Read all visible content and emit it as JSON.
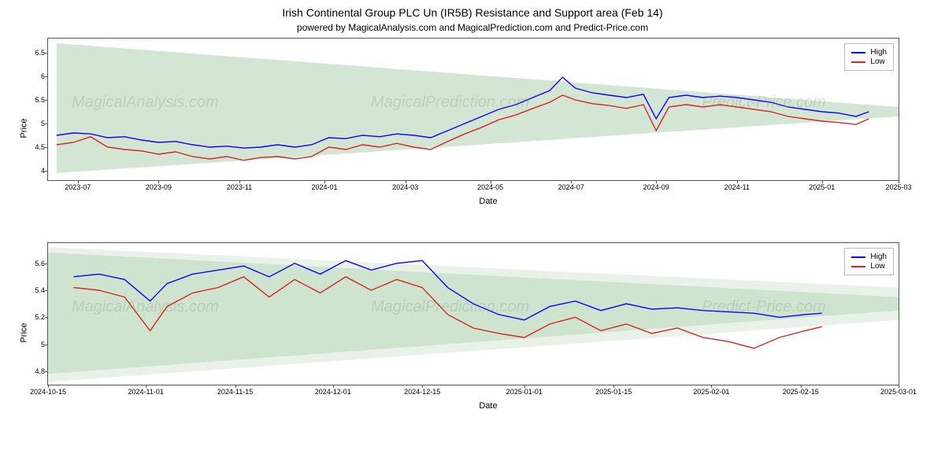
{
  "title": "Irish Continental Group PLC Un (IR5B) Resistance and Support area (Feb 14)",
  "subtitle": "powered by MagicalAnalysis.com and MagicalPrediction.com and Predict-Price.com",
  "watermarks": [
    "MagicalAnalysis.com",
    "MagicalPrediction.com",
    "Predict-Price.com"
  ],
  "legend": {
    "high": "High",
    "low": "Low"
  },
  "colors": {
    "high_line": "#1500ff",
    "low_line": "#d62728",
    "wedge_fill": "#c8e0c8",
    "wedge_fill_light": "#e0ece0",
    "axis": "#555555",
    "text": "#000000",
    "background": "#ffffff"
  },
  "chart_top": {
    "type": "line",
    "ylabel": "Price",
    "xlabel": "Date",
    "ylim": [
      3.8,
      6.8
    ],
    "yticks": [
      4.0,
      4.5,
      5.0,
      5.5,
      6.0,
      6.5
    ],
    "xticks": [
      "2023-07",
      "2023-09",
      "2023-11",
      "2024-01",
      "2024-03",
      "2024-05",
      "2024-07",
      "2024-09",
      "2024-11",
      "2025-01",
      "2025-03"
    ],
    "xtick_positions": [
      0.035,
      0.13,
      0.225,
      0.325,
      0.42,
      0.52,
      0.615,
      0.715,
      0.81,
      0.91,
      1.0
    ],
    "wedge_upper": [
      [
        0.01,
        6.7
      ],
      [
        1.0,
        5.35
      ]
    ],
    "wedge_lower": [
      [
        0.01,
        3.95
      ],
      [
        1.0,
        5.15
      ]
    ],
    "high_series": [
      [
        0.01,
        4.75
      ],
      [
        0.03,
        4.8
      ],
      [
        0.05,
        4.78
      ],
      [
        0.07,
        4.7
      ],
      [
        0.09,
        4.72
      ],
      [
        0.11,
        4.65
      ],
      [
        0.13,
        4.6
      ],
      [
        0.15,
        4.62
      ],
      [
        0.17,
        4.55
      ],
      [
        0.19,
        4.5
      ],
      [
        0.21,
        4.52
      ],
      [
        0.23,
        4.48
      ],
      [
        0.25,
        4.5
      ],
      [
        0.27,
        4.55
      ],
      [
        0.29,
        4.5
      ],
      [
        0.31,
        4.55
      ],
      [
        0.33,
        4.7
      ],
      [
        0.35,
        4.68
      ],
      [
        0.37,
        4.75
      ],
      [
        0.39,
        4.72
      ],
      [
        0.41,
        4.78
      ],
      [
        0.43,
        4.75
      ],
      [
        0.45,
        4.7
      ],
      [
        0.47,
        4.85
      ],
      [
        0.49,
        5.0
      ],
      [
        0.51,
        5.15
      ],
      [
        0.53,
        5.3
      ],
      [
        0.55,
        5.4
      ],
      [
        0.57,
        5.55
      ],
      [
        0.59,
        5.7
      ],
      [
        0.605,
        5.98
      ],
      [
        0.62,
        5.75
      ],
      [
        0.64,
        5.65
      ],
      [
        0.66,
        5.6
      ],
      [
        0.68,
        5.55
      ],
      [
        0.7,
        5.62
      ],
      [
        0.715,
        5.1
      ],
      [
        0.73,
        5.55
      ],
      [
        0.75,
        5.6
      ],
      [
        0.77,
        5.55
      ],
      [
        0.79,
        5.58
      ],
      [
        0.81,
        5.55
      ],
      [
        0.83,
        5.5
      ],
      [
        0.85,
        5.45
      ],
      [
        0.87,
        5.35
      ],
      [
        0.89,
        5.3
      ],
      [
        0.91,
        5.25
      ],
      [
        0.93,
        5.22
      ],
      [
        0.95,
        5.15
      ],
      [
        0.965,
        5.25
      ]
    ],
    "low_series": [
      [
        0.01,
        4.55
      ],
      [
        0.03,
        4.6
      ],
      [
        0.05,
        4.72
      ],
      [
        0.07,
        4.5
      ],
      [
        0.09,
        4.45
      ],
      [
        0.11,
        4.42
      ],
      [
        0.13,
        4.35
      ],
      [
        0.15,
        4.4
      ],
      [
        0.17,
        4.3
      ],
      [
        0.19,
        4.25
      ],
      [
        0.21,
        4.3
      ],
      [
        0.23,
        4.22
      ],
      [
        0.25,
        4.28
      ],
      [
        0.27,
        4.3
      ],
      [
        0.29,
        4.25
      ],
      [
        0.31,
        4.3
      ],
      [
        0.33,
        4.5
      ],
      [
        0.35,
        4.45
      ],
      [
        0.37,
        4.55
      ],
      [
        0.39,
        4.5
      ],
      [
        0.41,
        4.58
      ],
      [
        0.43,
        4.5
      ],
      [
        0.45,
        4.45
      ],
      [
        0.47,
        4.62
      ],
      [
        0.49,
        4.78
      ],
      [
        0.51,
        4.92
      ],
      [
        0.53,
        5.08
      ],
      [
        0.55,
        5.18
      ],
      [
        0.57,
        5.32
      ],
      [
        0.59,
        5.45
      ],
      [
        0.605,
        5.6
      ],
      [
        0.62,
        5.5
      ],
      [
        0.64,
        5.42
      ],
      [
        0.66,
        5.38
      ],
      [
        0.68,
        5.32
      ],
      [
        0.7,
        5.4
      ],
      [
        0.715,
        4.85
      ],
      [
        0.73,
        5.35
      ],
      [
        0.75,
        5.4
      ],
      [
        0.77,
        5.35
      ],
      [
        0.79,
        5.4
      ],
      [
        0.81,
        5.35
      ],
      [
        0.83,
        5.3
      ],
      [
        0.85,
        5.25
      ],
      [
        0.87,
        5.15
      ],
      [
        0.89,
        5.1
      ],
      [
        0.91,
        5.05
      ],
      [
        0.93,
        5.02
      ],
      [
        0.95,
        4.98
      ],
      [
        0.965,
        5.1
      ]
    ]
  },
  "chart_bottom": {
    "type": "line",
    "ylabel": "Price",
    "xlabel": "Date",
    "ylim": [
      4.7,
      5.75
    ],
    "yticks": [
      4.8,
      5.0,
      5.2,
      5.4,
      5.6
    ],
    "xticks": [
      "2024-10-15",
      "2024-11-01",
      "2024-11-15",
      "2024-12-01",
      "2024-12-15",
      "2025-01-01",
      "2025-01-15",
      "2025-02-01",
      "2025-02-15",
      "2025-03-01"
    ],
    "xtick_positions": [
      0.0,
      0.115,
      0.22,
      0.335,
      0.44,
      0.56,
      0.665,
      0.78,
      0.885,
      1.0
    ],
    "wedge_upper": [
      [
        0.0,
        5.68
      ],
      [
        1.0,
        5.35
      ]
    ],
    "wedge_lower": [
      [
        0.0,
        4.78
      ],
      [
        1.0,
        5.25
      ]
    ],
    "wedge_upper_light": [
      [
        0.0,
        5.72
      ],
      [
        1.0,
        5.42
      ]
    ],
    "wedge_lower_light": [
      [
        0.0,
        4.72
      ],
      [
        1.0,
        5.18
      ]
    ],
    "high_series": [
      [
        0.03,
        5.5
      ],
      [
        0.06,
        5.52
      ],
      [
        0.09,
        5.48
      ],
      [
        0.12,
        5.32
      ],
      [
        0.14,
        5.45
      ],
      [
        0.17,
        5.52
      ],
      [
        0.2,
        5.55
      ],
      [
        0.23,
        5.58
      ],
      [
        0.26,
        5.5
      ],
      [
        0.29,
        5.6
      ],
      [
        0.32,
        5.52
      ],
      [
        0.35,
        5.62
      ],
      [
        0.38,
        5.55
      ],
      [
        0.41,
        5.6
      ],
      [
        0.44,
        5.62
      ],
      [
        0.47,
        5.42
      ],
      [
        0.5,
        5.3
      ],
      [
        0.53,
        5.22
      ],
      [
        0.56,
        5.18
      ],
      [
        0.59,
        5.28
      ],
      [
        0.62,
        5.32
      ],
      [
        0.65,
        5.25
      ],
      [
        0.68,
        5.3
      ],
      [
        0.71,
        5.26
      ],
      [
        0.74,
        5.27
      ],
      [
        0.77,
        5.25
      ],
      [
        0.8,
        5.24
      ],
      [
        0.83,
        5.23
      ],
      [
        0.86,
        5.2
      ],
      [
        0.89,
        5.22
      ],
      [
        0.91,
        5.23
      ]
    ],
    "low_series": [
      [
        0.03,
        5.42
      ],
      [
        0.06,
        5.4
      ],
      [
        0.09,
        5.35
      ],
      [
        0.12,
        5.1
      ],
      [
        0.14,
        5.28
      ],
      [
        0.17,
        5.38
      ],
      [
        0.2,
        5.42
      ],
      [
        0.23,
        5.5
      ],
      [
        0.26,
        5.35
      ],
      [
        0.29,
        5.48
      ],
      [
        0.32,
        5.38
      ],
      [
        0.35,
        5.5
      ],
      [
        0.38,
        5.4
      ],
      [
        0.41,
        5.48
      ],
      [
        0.44,
        5.42
      ],
      [
        0.47,
        5.22
      ],
      [
        0.5,
        5.12
      ],
      [
        0.53,
        5.08
      ],
      [
        0.56,
        5.05
      ],
      [
        0.59,
        5.15
      ],
      [
        0.62,
        5.2
      ],
      [
        0.65,
        5.1
      ],
      [
        0.68,
        5.15
      ],
      [
        0.71,
        5.08
      ],
      [
        0.74,
        5.12
      ],
      [
        0.77,
        5.05
      ],
      [
        0.8,
        5.02
      ],
      [
        0.83,
        4.97
      ],
      [
        0.86,
        5.05
      ],
      [
        0.89,
        5.1
      ],
      [
        0.91,
        5.13
      ]
    ]
  }
}
